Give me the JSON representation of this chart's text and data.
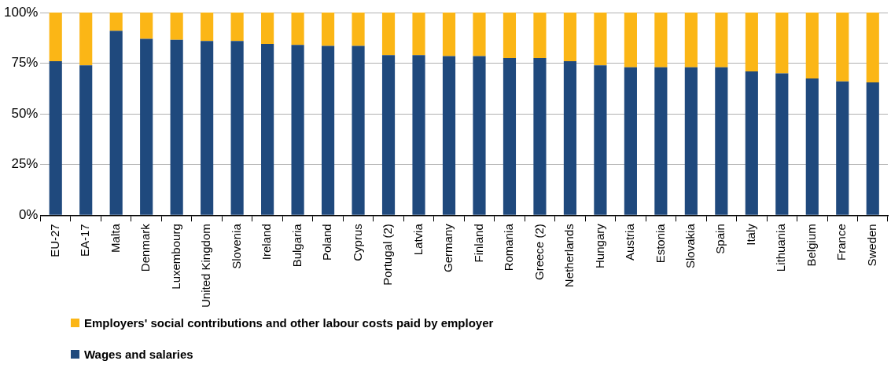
{
  "chart_data": {
    "type": "bar",
    "stacked": true,
    "legend": "bottom",
    "grid": "y",
    "categories": [
      "EU-27",
      "EA-17",
      "Malta",
      "Denmark",
      "Luxembourg",
      "United Kingdom",
      "Slovenia",
      "Ireland",
      "Bulgaria",
      "Poland",
      "Cyprus",
      "Portugal (2)",
      "Latvia",
      "Germany",
      "Finland",
      "Romania",
      "Greece (2)",
      "Netherlands",
      "Hungary",
      "Austria",
      "Estonia",
      "Slovakia",
      "Spain",
      "Italy",
      "Lithuania",
      "Belgium",
      "France",
      "Sweden"
    ],
    "series": [
      {
        "name": "Wages and salaries",
        "color": "#1f497d",
        "values": [
          76,
          74,
          91,
          87,
          86.5,
          86,
          86,
          84.5,
          84,
          83.5,
          83.5,
          79,
          79,
          78.5,
          78.5,
          77.5,
          77.5,
          76,
          74,
          73,
          73,
          73,
          73,
          71,
          70,
          67.5,
          66,
          65.5
        ]
      },
      {
        "name": "Employers' social contributions and other labour costs paid by employer",
        "color": "#fbb616",
        "values": [
          24,
          26,
          9,
          13,
          13.5,
          14,
          14,
          15.5,
          16,
          16.5,
          16.5,
          21,
          21,
          21.5,
          21.5,
          22.5,
          22.5,
          24,
          26,
          27,
          27,
          27,
          27,
          29,
          30,
          32.5,
          34,
          34.5
        ]
      }
    ],
    "ylim": [
      0,
      100
    ],
    "yticks": [
      {
        "value": 0,
        "label": "0%"
      },
      {
        "value": 25,
        "label": "25%"
      },
      {
        "value": 50,
        "label": "50%"
      },
      {
        "value": 75,
        "label": "75%"
      },
      {
        "value": 100,
        "label": "100%"
      }
    ]
  }
}
